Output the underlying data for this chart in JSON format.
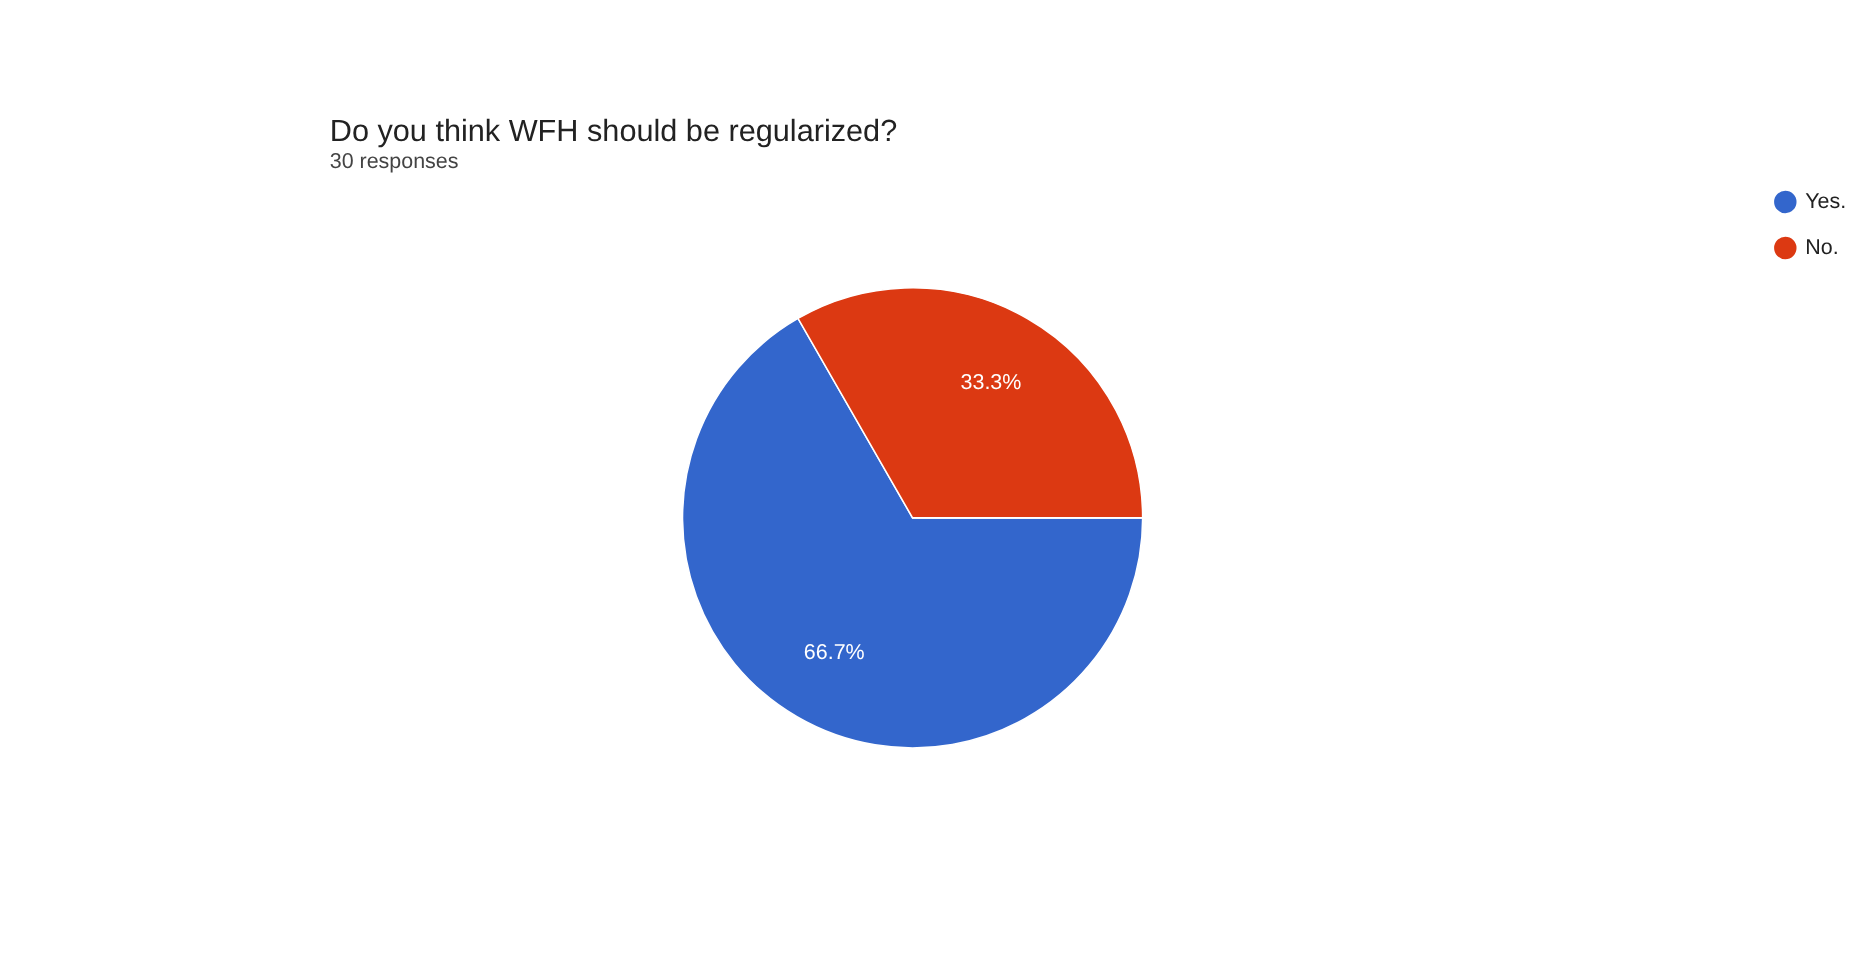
{
  "chart_data": {
    "type": "pie",
    "title": "Do you think WFH should be regularized?",
    "subtitle": "30 responses",
    "categories": [
      "Yes.",
      "No."
    ],
    "values": [
      66.7,
      33.3
    ],
    "colors": [
      "#3366cc",
      "#dc3912"
    ],
    "value_labels": [
      "66.7%",
      "33.3%"
    ],
    "legend": "top right"
  }
}
